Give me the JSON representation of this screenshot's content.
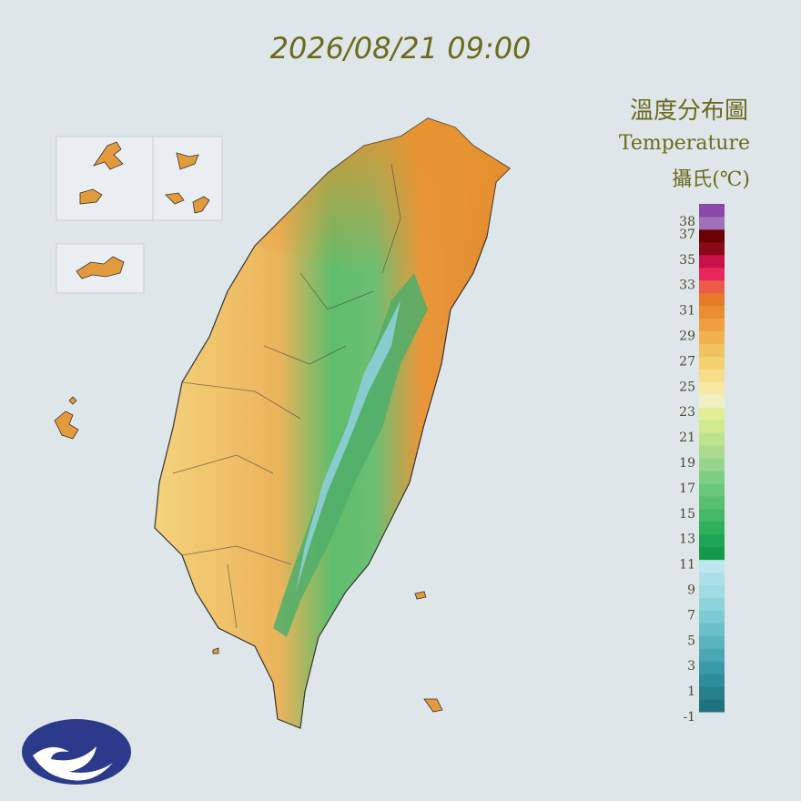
{
  "header": {
    "timestamp": "2026/08/21 09:00"
  },
  "legend": {
    "title": "溫度分布圖",
    "subtitle": "Temperature",
    "unit": "攝氏(℃)",
    "lim": [
      -1,
      39
    ],
    "ticks": [
      38,
      37,
      35,
      33,
      31,
      29,
      27,
      25,
      23,
      21,
      19,
      17,
      15,
      13,
      11,
      9,
      7,
      5,
      3,
      1,
      -1
    ],
    "colors": [
      "#20727e",
      "#26808c",
      "#2d8e9a",
      "#3a9ba8",
      "#4aa8b5",
      "#5ab4c0",
      "#6bbfca",
      "#7ccad3",
      "#8dd3db",
      "#9edbe2",
      "#addfe6",
      "#bde7ec",
      "#129a4a",
      "#1da553",
      "#2fb05d",
      "#43b866",
      "#57c070",
      "#6bc77a",
      "#80ce83",
      "#95d58d",
      "#a9dc8f",
      "#bde38e",
      "#d0e98d",
      "#e2ef94",
      "#eef0c4",
      "#f6e9a4",
      "#f6dd88",
      "#f4d070",
      "#f2c25e",
      "#f0b24e",
      "#ee9f3f",
      "#ea8c32",
      "#e67a28",
      "#ee5a4a",
      "#e8285a",
      "#c8104a",
      "#8a0a1c",
      "#6a0000",
      "#a070b8",
      "#8a48a8"
    ]
  }
}
